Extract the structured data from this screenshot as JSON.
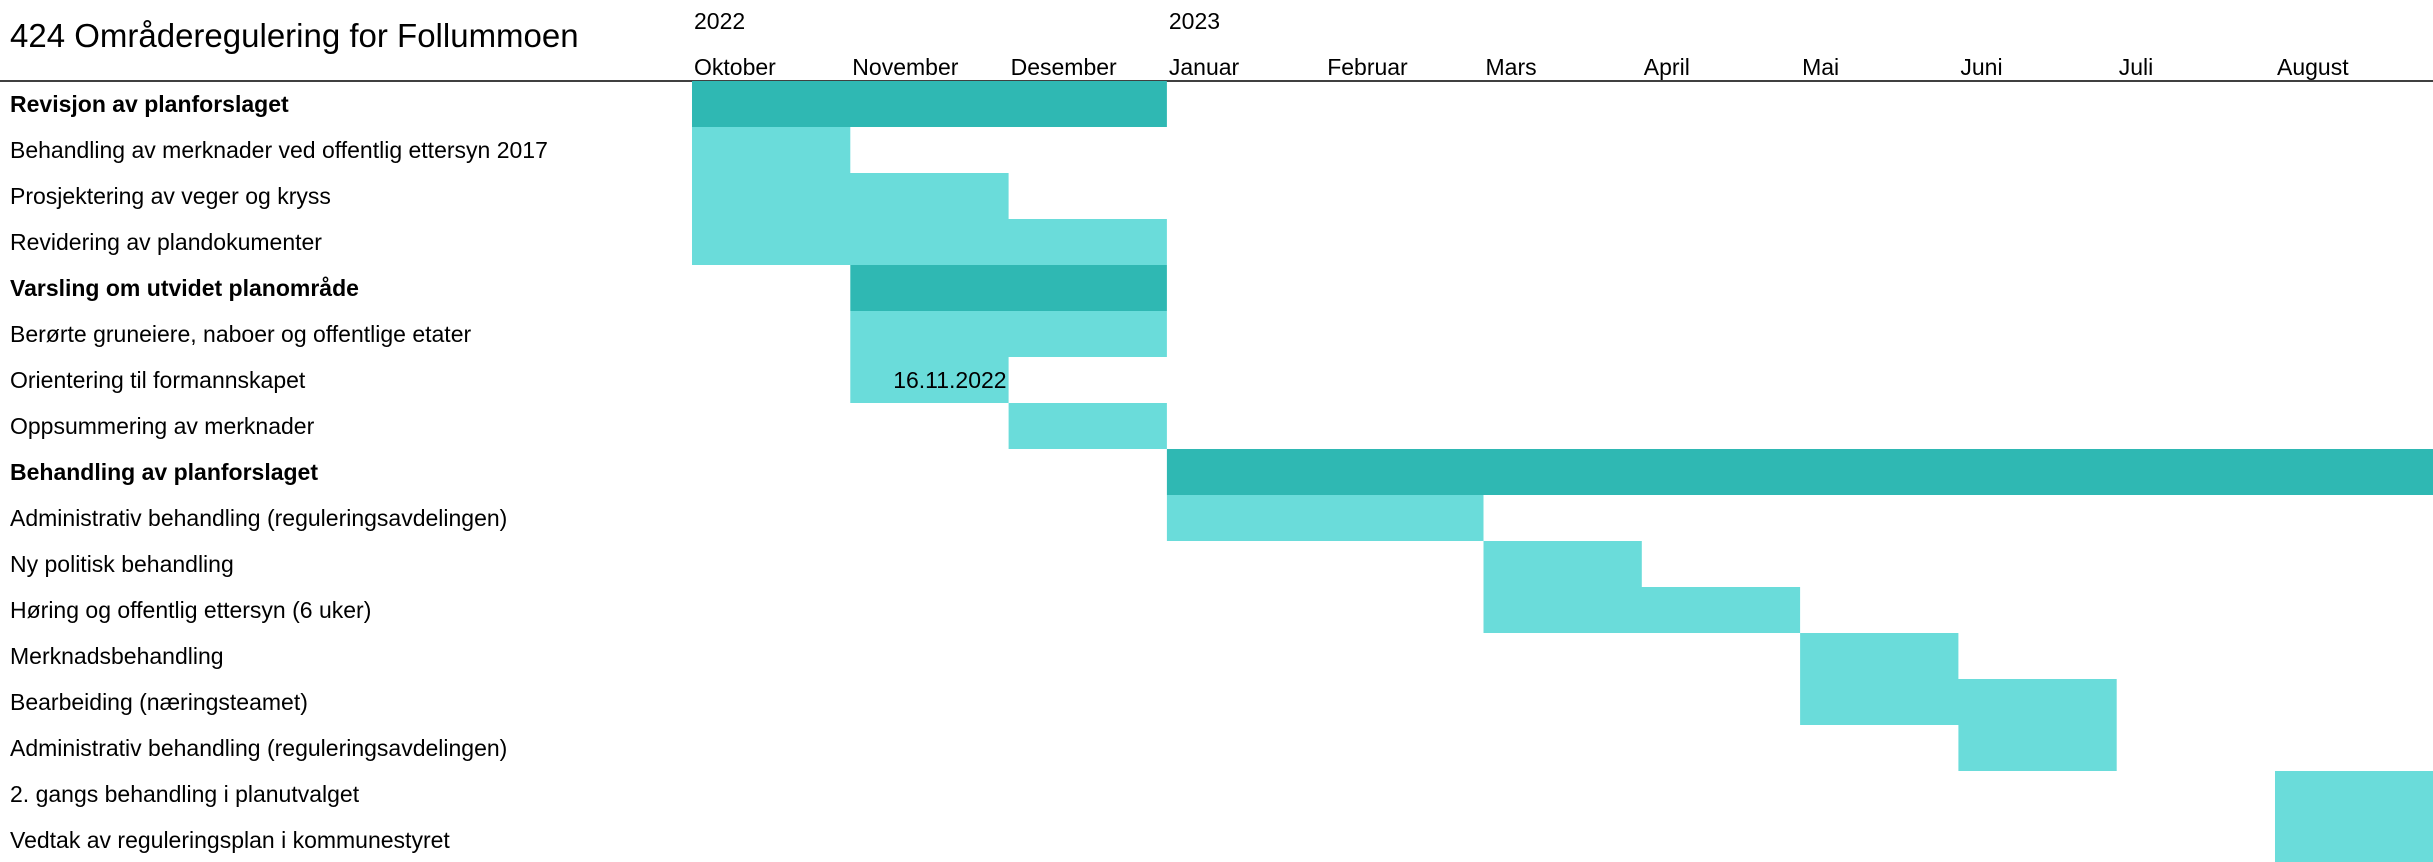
{
  "chart_data": {
    "type": "gantt",
    "title": "424 Områderegulering for Follummoen",
    "years": [
      {
        "label": "2022",
        "month_index": 0
      },
      {
        "label": "2023",
        "month_index": 3
      }
    ],
    "months": [
      "Oktober",
      "November",
      "Desember",
      "Januar",
      "Februar",
      "Mars",
      "April",
      "Mai",
      "Juni",
      "Juli",
      "August"
    ],
    "colors": {
      "group": "#2fb8b3",
      "task": "#6adcda",
      "axis_line": "#000000"
    },
    "tasks": [
      {
        "label": "Revisjon av planforslaget",
        "group": true,
        "start": 0,
        "end": 3
      },
      {
        "label": "Behandling av merknader ved offentlig ettersyn 2017",
        "group": false,
        "start": 0,
        "end": 1
      },
      {
        "label": "Prosjektering av veger og kryss",
        "group": false,
        "start": 0,
        "end": 2
      },
      {
        "label": "Revidering av plandokumenter",
        "group": false,
        "start": 0,
        "end": 3
      },
      {
        "label": "Varsling om utvidet planområde",
        "group": true,
        "start": 1,
        "end": 3
      },
      {
        "label": "Berørte gruneiere, naboer og offentlige etater",
        "group": false,
        "start": 1,
        "end": 3
      },
      {
        "label": "Orientering til formannskapet",
        "group": false,
        "start": 1,
        "end": 2,
        "annotation": "16.11.2022"
      },
      {
        "label": "Oppsummering av merknader",
        "group": false,
        "start": 2,
        "end": 3
      },
      {
        "label": "Behandling av planforslaget",
        "group": true,
        "start": 3,
        "end": 11
      },
      {
        "label": "Administrativ behandling (reguleringsavdelingen)",
        "group": false,
        "start": 3,
        "end": 5
      },
      {
        "label": "Ny politisk behandling",
        "group": false,
        "start": 5,
        "end": 6
      },
      {
        "label": "Høring og offentlig ettersyn (6 uker)",
        "group": false,
        "start": 5,
        "end": 7
      },
      {
        "label": "Merknadsbehandling",
        "group": false,
        "start": 7,
        "end": 8
      },
      {
        "label": "Bearbeiding (næringsteamet)",
        "group": false,
        "start": 7,
        "end": 9
      },
      {
        "label": "Administrativ behandling (reguleringsavdelingen)",
        "group": false,
        "start": 8,
        "end": 9
      },
      {
        "label": "2. gangs behandling i planutvalget",
        "group": false,
        "start": 10,
        "end": 11
      },
      {
        "label": "Vedtak av reguleringsplan i kommunestyret",
        "group": false,
        "start": 10,
        "end": 11
      }
    ]
  }
}
